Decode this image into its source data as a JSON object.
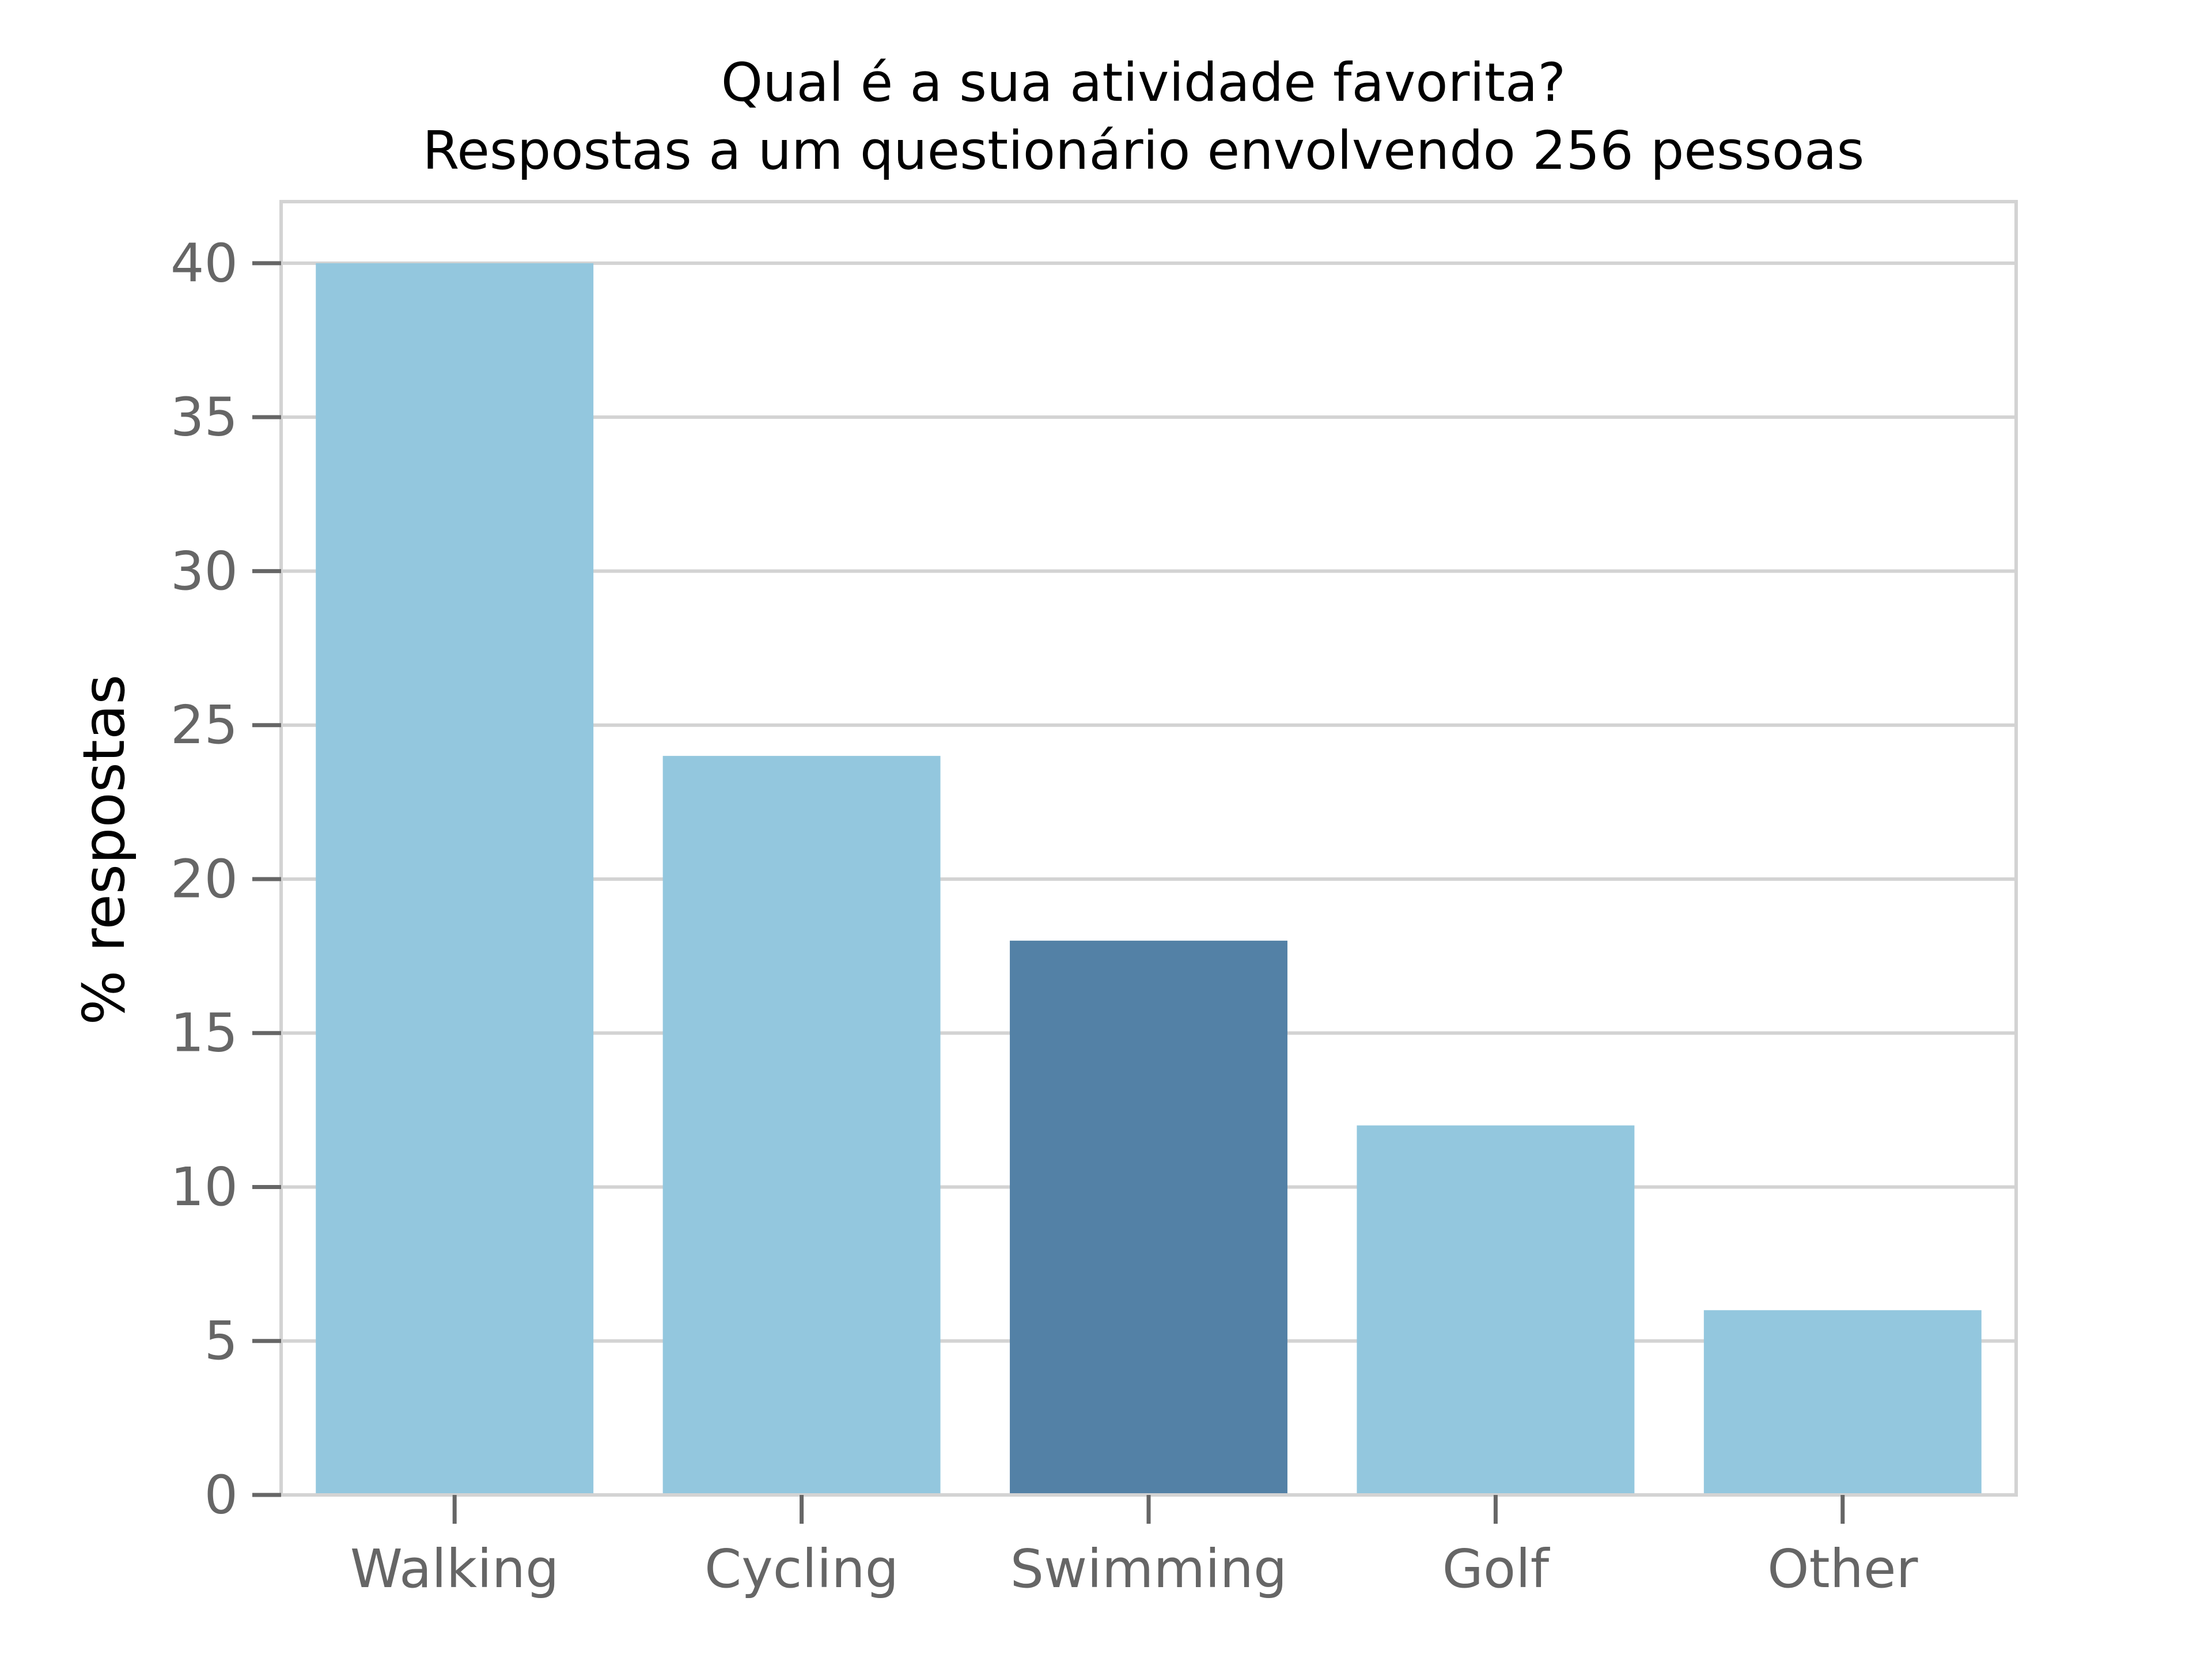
{
  "chart_data": {
    "type": "bar",
    "title": "Qual é a sua atividade favorita?",
    "subtitle": "Respostas a um questionário envolvendo 256 pessoas",
    "xlabel": "",
    "ylabel": "% respostas",
    "categories": [
      "Walking",
      "Cycling",
      "Swimming",
      "Golf",
      "Other"
    ],
    "values": [
      40,
      24,
      18,
      12,
      6
    ],
    "highlight_index": 2,
    "ylim": [
      0,
      42
    ],
    "yticks": [
      0,
      5,
      10,
      15,
      20,
      25,
      30,
      35,
      40
    ],
    "ytick_labels": [
      "0",
      "5",
      "10",
      "15",
      "20",
      "25",
      "30",
      "35",
      "40"
    ],
    "grid": "horizontal",
    "legend": "none",
    "colors": {
      "bar": "#93c7de",
      "highlight": "#5381a6",
      "grid": "#d3d3d3",
      "spine": "#d3d3d3",
      "tick": "#666666",
      "text": "#000000"
    }
  }
}
